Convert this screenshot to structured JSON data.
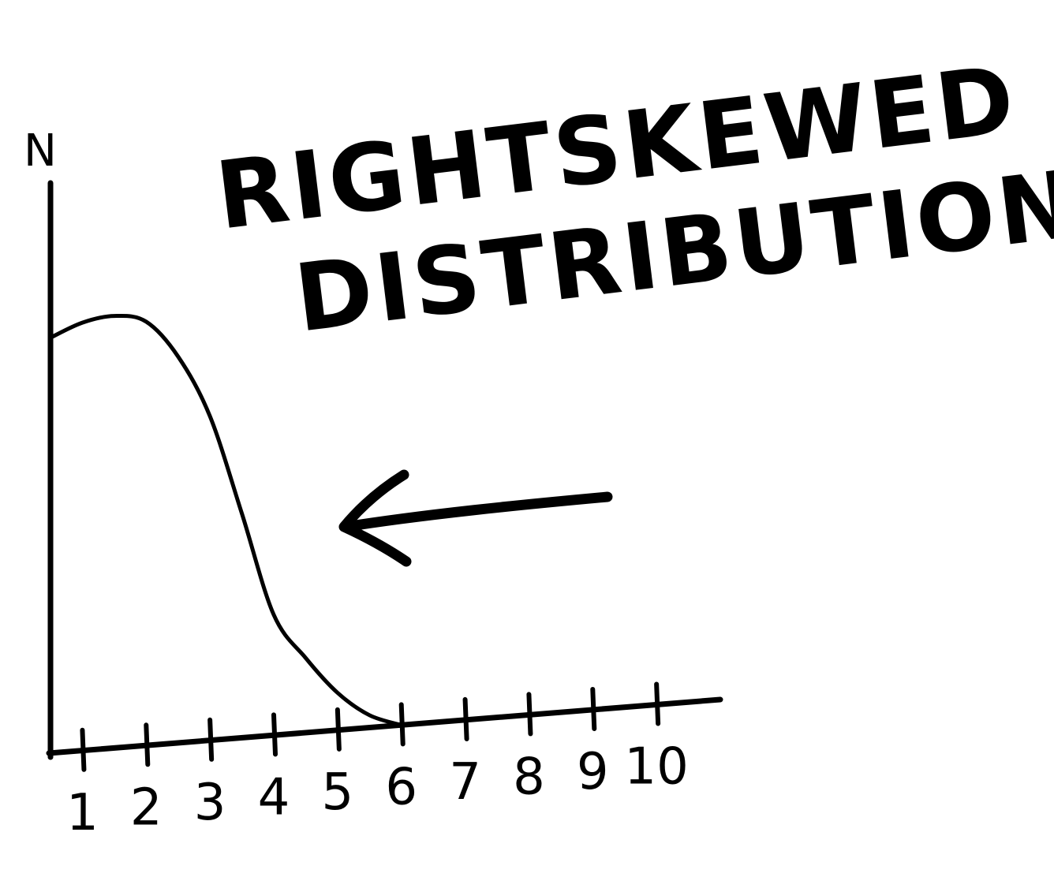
{
  "chart_data": {
    "type": "line",
    "title": "RIGHT SKEWED DISTRIBUTION",
    "title_lines": [
      "RIGHTSKEWED",
      "DISTRIBUTION"
    ],
    "ylabel": "N",
    "xlabel": "",
    "x_ticks": [
      "1",
      "2",
      "3",
      "4",
      "5",
      "6",
      "7",
      "8",
      "9",
      "10"
    ],
    "xlim": [
      0.5,
      11
    ],
    "ylim": [
      0,
      1.08
    ],
    "grid": false,
    "legend": "none",
    "series": [
      {
        "x": [
          0.5,
          1.0,
          1.5,
          2.0,
          2.5,
          3.0,
          3.5,
          4.0,
          4.5,
          5.0,
          5.5,
          6.0
        ],
        "y": [
          1.0,
          1.03,
          1.04,
          1.02,
          0.93,
          0.78,
          0.54,
          0.29,
          0.18,
          0.09,
          0.03,
          0.0
        ]
      }
    ],
    "annotation": {
      "type": "arrow",
      "points_to": "curve",
      "direction": "left"
    },
    "colors": {
      "ink": "#000000",
      "background": "#ffffff"
    }
  }
}
